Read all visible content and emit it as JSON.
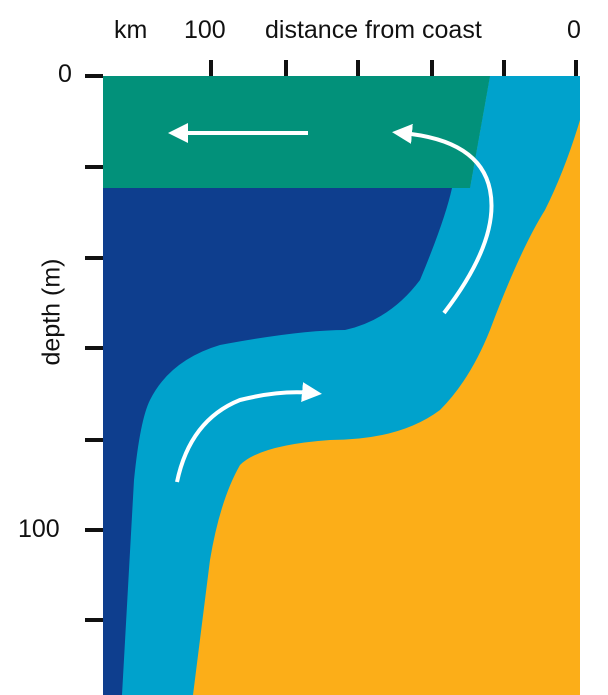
{
  "labels": {
    "top_km": "km",
    "top_100": "100",
    "top_distance": "distance from coast",
    "top_zero": "0",
    "left_zero": "0",
    "left_100": "100",
    "y_axis": "depth (m)"
  },
  "colors": {
    "surface_layer": "#02917A",
    "deep_water": "#0E3E8E",
    "current": "#00A2CC",
    "seabed": "#FCAE18",
    "coastal_green": "#6CBB2F",
    "arrow": "#FFFFFF",
    "tick": "#111111"
  },
  "icons": [
    "arrow-left-icon",
    "curved-arrow-icon"
  ]
}
